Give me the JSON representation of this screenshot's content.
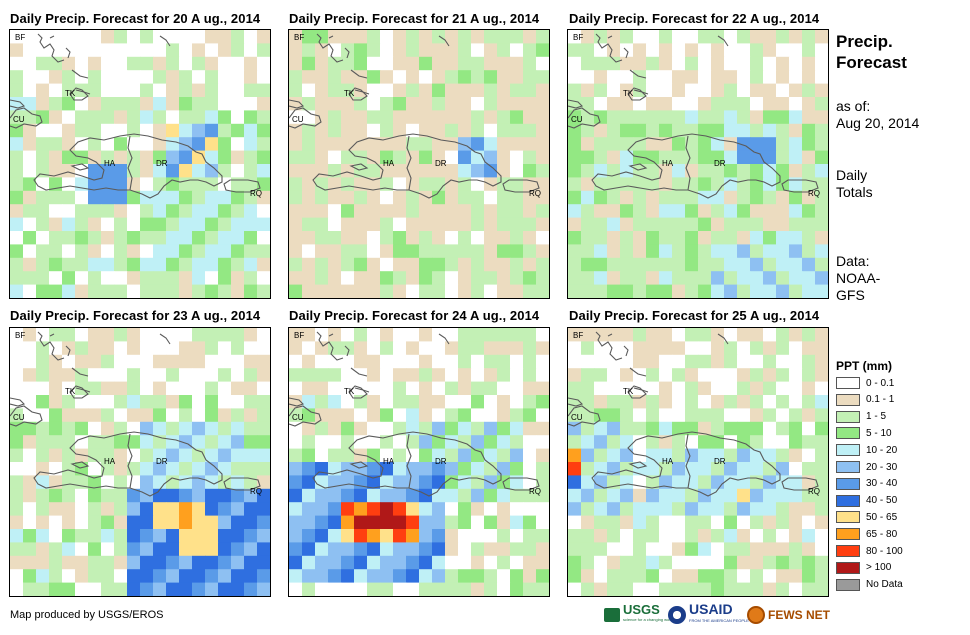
{
  "panels": [
    {
      "title": "Daily Precip. Forecast for 20 A ug., 2014"
    },
    {
      "title": "Daily Precip. Forecast for 21 A ug., 2014"
    },
    {
      "title": "Daily Precip. Forecast for 22 A ug., 2014"
    },
    {
      "title": "Daily Precip. Forecast for 23 A ug., 2014"
    },
    {
      "title": "Daily Precip. Forecast for 24 A ug., 2014"
    },
    {
      "title": "Daily Precip. Forecast for 25 A ug., 2014"
    }
  ],
  "map_labels": {
    "bf": "BF",
    "tk": "TK",
    "cu": "CU",
    "ha": "HA",
    "dr": "DR",
    "rq": "RQ"
  },
  "side": {
    "title_line1": "Precip.",
    "title_line2": "Forecast",
    "asof_label": "as of:",
    "asof_date": "Aug 20, 2014",
    "totals_line1": "Daily",
    "totals_line2": "Totals",
    "data_line1": "Data:",
    "data_line2": "NOAA-",
    "data_line3": "GFS"
  },
  "legend": {
    "title": "PPT (mm)",
    "items": [
      {
        "label": "0 - 0.1",
        "color": "#ffffff"
      },
      {
        "label": "0.1 - 1",
        "color": "#ecdcc0"
      },
      {
        "label": "1 - 5",
        "color": "#c3f0b5"
      },
      {
        "label": "5 - 10",
        "color": "#93e883"
      },
      {
        "label": "10 - 20",
        "color": "#bff0f6"
      },
      {
        "label": "20 - 30",
        "color": "#8ec0f2"
      },
      {
        "label": "30 - 40",
        "color": "#5a9be8"
      },
      {
        "label": "40 - 50",
        "color": "#2f6fe0"
      },
      {
        "label": "50 - 65",
        "color": "#ffe18a"
      },
      {
        "label": "65 - 80",
        "color": "#ffa01e"
      },
      {
        "label": "80 - 100",
        "color": "#ff3e10"
      },
      {
        "label": "> 100",
        "color": "#b01818"
      },
      {
        "label": "No Data",
        "color": "#9a9a9a"
      }
    ]
  },
  "footer": {
    "credit": "Map produced by USGS/EROS",
    "logos": {
      "usgs": "USGS",
      "usaid": "USAID",
      "fewsnet": "FEWS NET"
    },
    "usgs_tagline": "science for a changing world",
    "usaid_tagline": "FROM THE AMERICAN PEOPLE"
  }
}
